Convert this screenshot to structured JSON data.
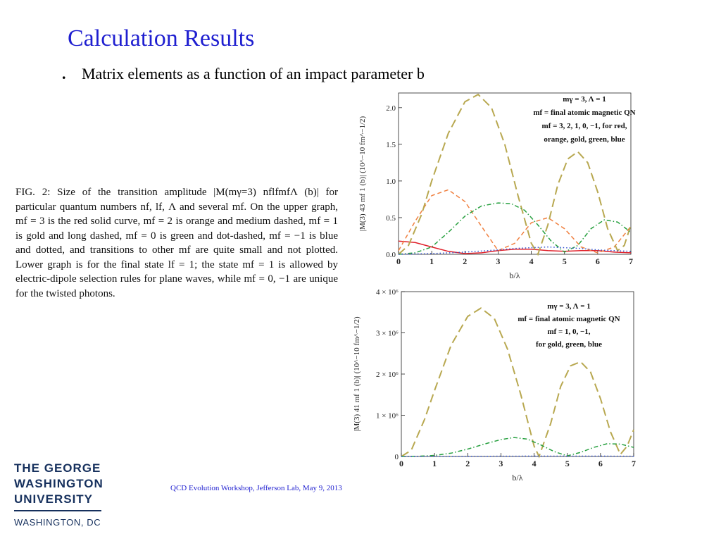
{
  "slide": {
    "title": "Calculation Results",
    "bullet_marker": ".",
    "bullet": "Matrix elements as a function of an impact parameter b",
    "caption": "FIG. 2: Size of the transition amplitude |M(mγ=3) nflfmfΛ (b)| for particular quantum numbers nf, lf, Λ and several mf. On the upper graph, mf = 3 is the red solid curve, mf = 2 is orange and medium dashed, mf = 1 is gold and long dashed, mf = 0 is green and dot-dashed, mf = −1 is blue and dotted, and transitions to other mf are quite small and not plotted. Lower graph is for the final state lf = 1; the state mf = 1 is allowed by electric-dipole selection rules for plane waves, while mf = 0, −1 are unique for the twisted photons.",
    "footer": "QCD Evolution Workshop, Jefferson Lab, May 9, 2013"
  },
  "logo": {
    "line1": "THE GEORGE",
    "line2": "WASHINGTON",
    "line3": "UNIVERSITY",
    "city": "WASHINGTON, DC",
    "color": "#16305d"
  },
  "chart_data": [
    {
      "type": "line",
      "xlabel": "b/λ",
      "ylabel": "|M(3) 43 mf 1 (b)|  (10^−10 fm^−1/2)",
      "xlim": [
        0,
        7
      ],
      "ylim": [
        0,
        2.2
      ],
      "x_ticks": [
        "0",
        "1",
        "2",
        "3",
        "4",
        "5",
        "6",
        "7"
      ],
      "y_ticks": [
        "0.0",
        "0.5",
        "1.0",
        "1.5",
        "2.0"
      ],
      "y_tick_values": [
        0,
        0.5,
        1.0,
        1.5,
        2.0
      ],
      "legend": [
        "mγ = 3,  Λ = 1",
        "mf = final atomic magnetic QN",
        "mf = 3, 2, 1, 0, −1, for red,",
        "orange, gold, green, blue"
      ],
      "legend_position": "top-right",
      "series": [
        {
          "color": "#e0202a",
          "dash": "solid",
          "x": [
            0,
            0.5,
            1.0,
            1.5,
            2.0,
            2.5,
            3.0,
            3.5,
            4.0,
            4.5,
            5.0,
            5.5,
            6.0,
            6.5,
            7.0
          ],
          "y": [
            0.18,
            0.16,
            0.1,
            0.04,
            0.01,
            0.02,
            0.05,
            0.07,
            0.07,
            0.05,
            0.04,
            0.05,
            0.05,
            0.03,
            0.02
          ]
        },
        {
          "color": "#f08040",
          "dash": "medium",
          "x": [
            0,
            0.5,
            1.0,
            1.5,
            2.0,
            2.5,
            3.0,
            3.5,
            4.0,
            4.5,
            5.0,
            5.5,
            6.0,
            6.5,
            7.0
          ],
          "y": [
            0.05,
            0.45,
            0.8,
            0.88,
            0.72,
            0.38,
            0.05,
            0.15,
            0.43,
            0.5,
            0.35,
            0.1,
            0.02,
            0.1,
            0.38
          ]
        },
        {
          "color": "#b8a850",
          "dash": "long",
          "x": [
            0,
            0.3,
            0.7,
            1.0,
            1.5,
            2.0,
            2.4,
            2.8,
            3.2,
            3.6,
            4.0,
            4.2,
            4.5,
            4.8,
            5.1,
            5.4,
            5.7,
            6.0,
            6.3,
            6.6,
            6.8,
            7.0
          ],
          "y": [
            0.0,
            0.12,
            0.55,
            1.0,
            1.65,
            2.08,
            2.18,
            2.0,
            1.5,
            0.8,
            0.15,
            0.0,
            0.4,
            0.95,
            1.3,
            1.4,
            1.25,
            0.85,
            0.35,
            0.05,
            0.12,
            0.4
          ]
        },
        {
          "color": "#28a040",
          "dash": "dot-dash",
          "x": [
            0,
            0.5,
            1.0,
            1.5,
            2.0,
            2.5,
            3.0,
            3.4,
            3.8,
            4.2,
            4.6,
            5.0,
            5.4,
            5.8,
            6.2,
            6.6,
            7.0
          ],
          "y": [
            0.0,
            0.02,
            0.1,
            0.3,
            0.52,
            0.66,
            0.7,
            0.69,
            0.6,
            0.4,
            0.18,
            0.03,
            0.12,
            0.35,
            0.47,
            0.44,
            0.3
          ]
        },
        {
          "color": "#3050d0",
          "dash": "dotted",
          "x": [
            0,
            1.0,
            2.0,
            3.0,
            3.5,
            4.0,
            4.5,
            5.0,
            5.5,
            6.0,
            6.5,
            7.0
          ],
          "y": [
            0.0,
            0.01,
            0.03,
            0.06,
            0.08,
            0.09,
            0.1,
            0.09,
            0.08,
            0.06,
            0.05,
            0.04
          ]
        }
      ]
    },
    {
      "type": "line",
      "xlabel": "b/λ",
      "ylabel": "|M(3) 41 mf 1 (b)|  (10^−10 fm^−1/2)",
      "xlim": [
        0,
        7
      ],
      "ylim": [
        0,
        4000000
      ],
      "x_ticks": [
        "0",
        "1",
        "2",
        "3",
        "4",
        "5",
        "6",
        "7"
      ],
      "y_ticks": [
        "0",
        "1 × 10⁶",
        "2 × 10⁶",
        "3 × 10⁶",
        "4 × 10⁶"
      ],
      "y_tick_values": [
        0,
        1000000,
        2000000,
        3000000,
        4000000
      ],
      "legend": [
        "mγ = 3,  Λ = 1",
        "mf = final atomic magnetic QN",
        "mf = 1, 0, −1,",
        "for gold, green, blue"
      ],
      "legend_position": "top-right",
      "series": [
        {
          "color": "#b8a850",
          "dash": "long",
          "x": [
            0,
            0.3,
            0.7,
            1.0,
            1.5,
            2.0,
            2.4,
            2.8,
            3.2,
            3.6,
            4.0,
            4.15,
            4.5,
            4.8,
            5.1,
            5.4,
            5.7,
            6.0,
            6.3,
            6.6,
            6.8,
            7.0
          ],
          "y": [
            0,
            150000,
            900000,
            1600000,
            2700000,
            3400000,
            3600000,
            3350000,
            2600000,
            1500000,
            250000,
            0,
            800000,
            1700000,
            2200000,
            2300000,
            2050000,
            1400000,
            600000,
            50000,
            250000,
            650000
          ]
        },
        {
          "color": "#28a040",
          "dash": "dot-dash",
          "x": [
            0,
            0.5,
            1.0,
            1.5,
            2.0,
            2.5,
            3.0,
            3.4,
            3.8,
            4.2,
            4.6,
            5.0,
            5.4,
            5.8,
            6.2,
            6.6,
            7.0
          ],
          "y": [
            0,
            5000,
            25000,
            80000,
            180000,
            300000,
            410000,
            460000,
            420000,
            280000,
            120000,
            15000,
            100000,
            220000,
            310000,
            300000,
            220000
          ]
        },
        {
          "color": "#3050d0",
          "dash": "dotted",
          "x": [
            0,
            2.0,
            4.0,
            6.0,
            7.0
          ],
          "y": [
            0,
            3000,
            8000,
            8000,
            5000
          ]
        }
      ]
    }
  ]
}
